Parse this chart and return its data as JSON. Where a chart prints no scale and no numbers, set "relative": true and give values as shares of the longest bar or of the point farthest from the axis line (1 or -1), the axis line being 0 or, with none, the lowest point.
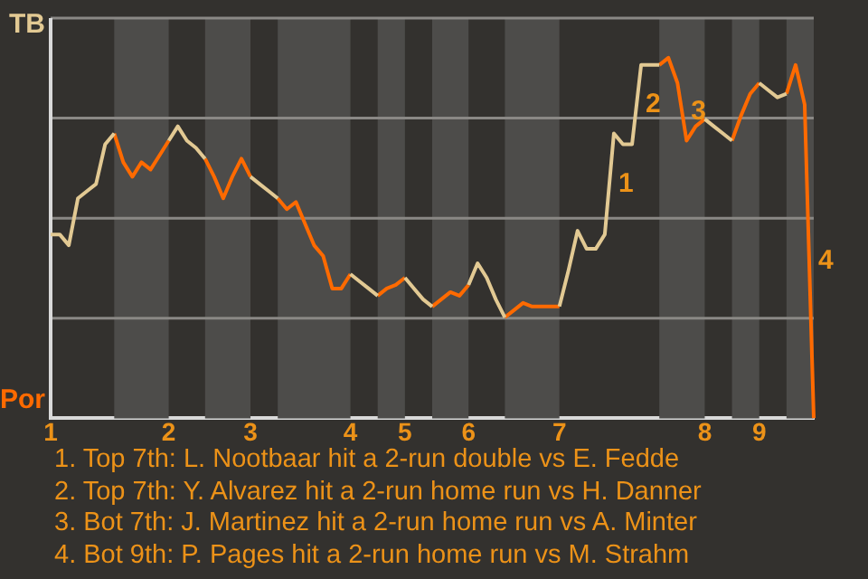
{
  "chart_data": {
    "type": "line",
    "relative": true,
    "categories": [
      "1",
      null,
      null,
      null,
      null,
      null,
      null,
      null,
      null,
      null,
      null,
      null,
      null,
      "2",
      null,
      null,
      null,
      null,
      null,
      null,
      null,
      null,
      "3",
      null,
      null,
      null,
      null,
      null,
      null,
      null,
      null,
      null,
      null,
      "4",
      null,
      null,
      null,
      null,
      null,
      "5",
      null,
      null,
      null,
      null,
      null,
      null,
      "6",
      null,
      null,
      null,
      null,
      null,
      null,
      null,
      null,
      null,
      "7",
      null,
      null,
      null,
      null,
      null,
      null,
      null,
      null,
      null,
      null,
      null,
      null,
      null,
      null,
      null,
      "8",
      null,
      null,
      null,
      null,
      null,
      "9",
      null,
      null,
      null,
      null,
      null,
      null
    ],
    "series": [
      {
        "color": "#e2c993",
        "values": [
          0.51,
          0.51,
          0.48,
          0.61,
          0.63,
          0.65,
          0.76,
          0.79,
          null,
          null,
          null,
          null,
          null,
          0.77,
          0.81,
          0.77,
          0.75,
          0.72,
          null,
          null,
          null,
          null,
          0.67,
          0.65,
          0.63,
          0.61,
          null,
          null,
          null,
          null,
          null,
          null,
          null,
          0.4,
          0.38,
          0.36,
          0.34,
          null,
          null,
          0.39,
          0.36,
          0.33,
          0.31,
          null,
          null,
          null,
          0.37,
          0.43,
          0.39,
          0.33,
          0.28,
          null,
          null,
          null,
          null,
          null,
          0.31,
          0.41,
          0.52,
          0.47,
          0.47,
          0.51,
          0.79,
          0.76,
          0.76,
          0.98,
          0.98,
          0.98,
          null,
          null,
          null,
          null,
          0.83,
          0.81,
          0.79,
          0.77,
          null,
          null,
          0.93,
          0.91,
          0.89,
          0.9,
          null,
          null,
          null
        ]
      },
      {
        "color": "#ff6a00",
        "values": [
          null,
          null,
          null,
          null,
          null,
          null,
          null,
          0.79,
          0.71,
          0.67,
          0.71,
          0.69,
          0.73,
          0.77,
          null,
          null,
          null,
          0.72,
          0.67,
          0.61,
          0.67,
          0.72,
          0.67,
          null,
          null,
          0.61,
          0.58,
          0.6,
          0.54,
          0.48,
          0.45,
          0.36,
          0.36,
          0.4,
          null,
          null,
          0.34,
          0.36,
          0.37,
          0.39,
          null,
          null,
          0.31,
          0.33,
          0.35,
          0.34,
          0.37,
          null,
          null,
          null,
          0.28,
          0.3,
          0.32,
          0.31,
          0.31,
          0.31,
          0.31,
          null,
          null,
          null,
          null,
          null,
          null,
          null,
          null,
          null,
          null,
          0.98,
          1,
          0.93,
          0.77,
          0.81,
          0.83,
          null,
          null,
          0.77,
          0.84,
          0.9,
          0.93,
          null,
          null,
          0.9,
          0.98,
          0.87,
          0
        ]
      }
    ],
    "grid": "y",
    "annotations": [
      "TB",
      "Por",
      "1",
      "2",
      "3",
      "4",
      "1. Top 7th: L. Nootbaar hit a 2-run double vs E. Fedde",
      "2. Top 7th: Y. Alvarez hit a 2-run home run vs H. Danner",
      "3. Bot 7th: J. Martinez hit a 2-run home run vs A. Minter",
      "4. Bot 9th: P. Pages hit a 2-run home run vs M. Strahm"
    ],
    "marker": "none",
    "legend": false
  }
}
